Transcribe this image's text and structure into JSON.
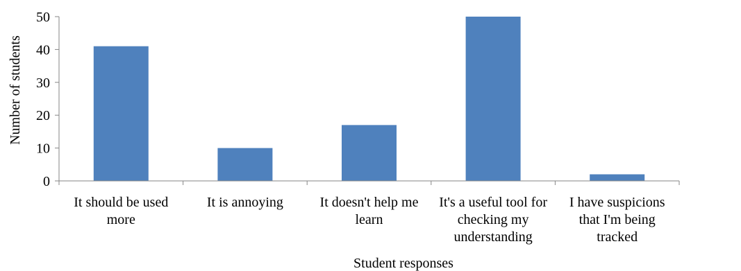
{
  "chart_data": {
    "type": "bar",
    "title": "",
    "xlabel": "Student responses",
    "ylabel": "Number of students",
    "ylim": [
      0,
      50
    ],
    "yticks": [
      0,
      10,
      20,
      30,
      40,
      50
    ],
    "grid": false,
    "legend": "none",
    "bar_color": "#4f81bd",
    "categories": [
      [
        "It should be used",
        "more"
      ],
      [
        "It is annoying"
      ],
      [
        "It doesn't help me",
        "learn"
      ],
      [
        "It's a useful tool for",
        "checking my",
        "understanding"
      ],
      [
        "I have suspicions",
        "that I'm being",
        "tracked"
      ]
    ],
    "values": [
      41,
      10,
      17,
      50,
      2
    ]
  }
}
